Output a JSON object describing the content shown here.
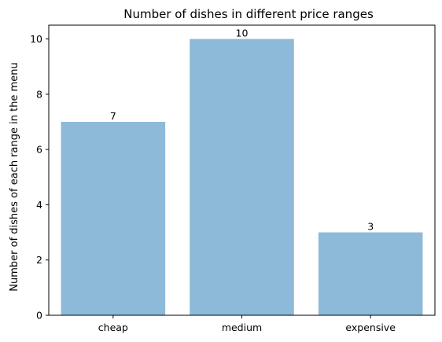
{
  "chart_data": {
    "type": "bar",
    "title": "Number of dishes in different price ranges",
    "xlabel": "",
    "ylabel": "Number of dishes of each range in the menu",
    "categories": [
      "cheap",
      "medium",
      "expensive"
    ],
    "values": [
      7,
      10,
      3
    ],
    "data_labels": [
      "7",
      "10",
      "3"
    ],
    "ylim": [
      0,
      10.5
    ],
    "yticks": [
      0,
      2,
      4,
      6,
      8,
      10
    ],
    "bar_color": "#8EBAD9",
    "grid": false,
    "legend": "none"
  }
}
